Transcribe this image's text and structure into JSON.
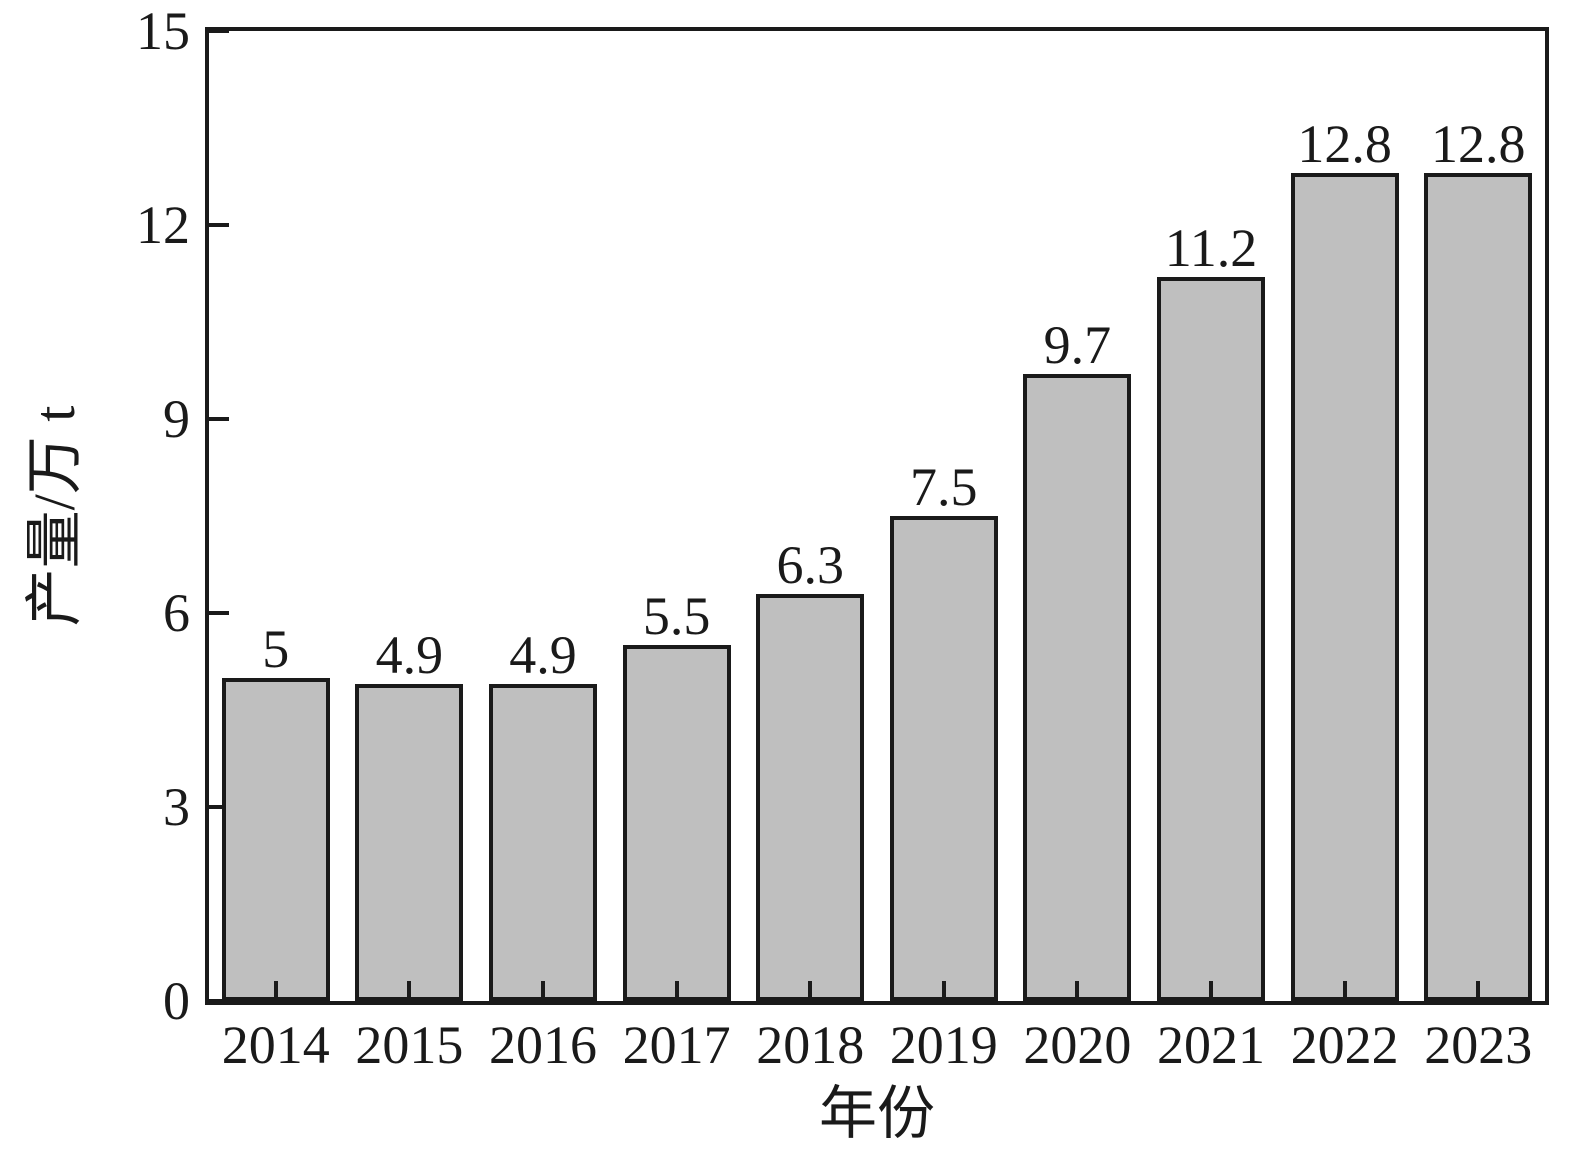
{
  "chart_data": {
    "type": "bar",
    "title": "",
    "xlabel": "年份",
    "ylabel": "产量/万 t",
    "categories": [
      "2014",
      "2015",
      "2016",
      "2017",
      "2018",
      "2019",
      "2020",
      "2021",
      "2022",
      "2023"
    ],
    "values": [
      5,
      4.9,
      4.9,
      5.5,
      6.3,
      7.5,
      9.7,
      11.2,
      12.8,
      12.8
    ],
    "value_labels": [
      "5",
      "4.9",
      "4.9",
      "5.5",
      "6.3",
      "7.5",
      "9.7",
      "11.2",
      "12.8",
      "12.8"
    ],
    "ylim": [
      0,
      15
    ],
    "yticks": [
      0,
      3,
      6,
      9,
      12,
      15
    ],
    "ytick_labels": [
      "0",
      "3",
      "6",
      "9",
      "12",
      "15"
    ],
    "grid": false,
    "legend": "none",
    "colors": {
      "bar_fill": "#bfbfbf",
      "bar_border": "#1a1a1a",
      "axis": "#1a1a1a",
      "text": "#1a1a1a",
      "background": "#ffffff"
    }
  }
}
